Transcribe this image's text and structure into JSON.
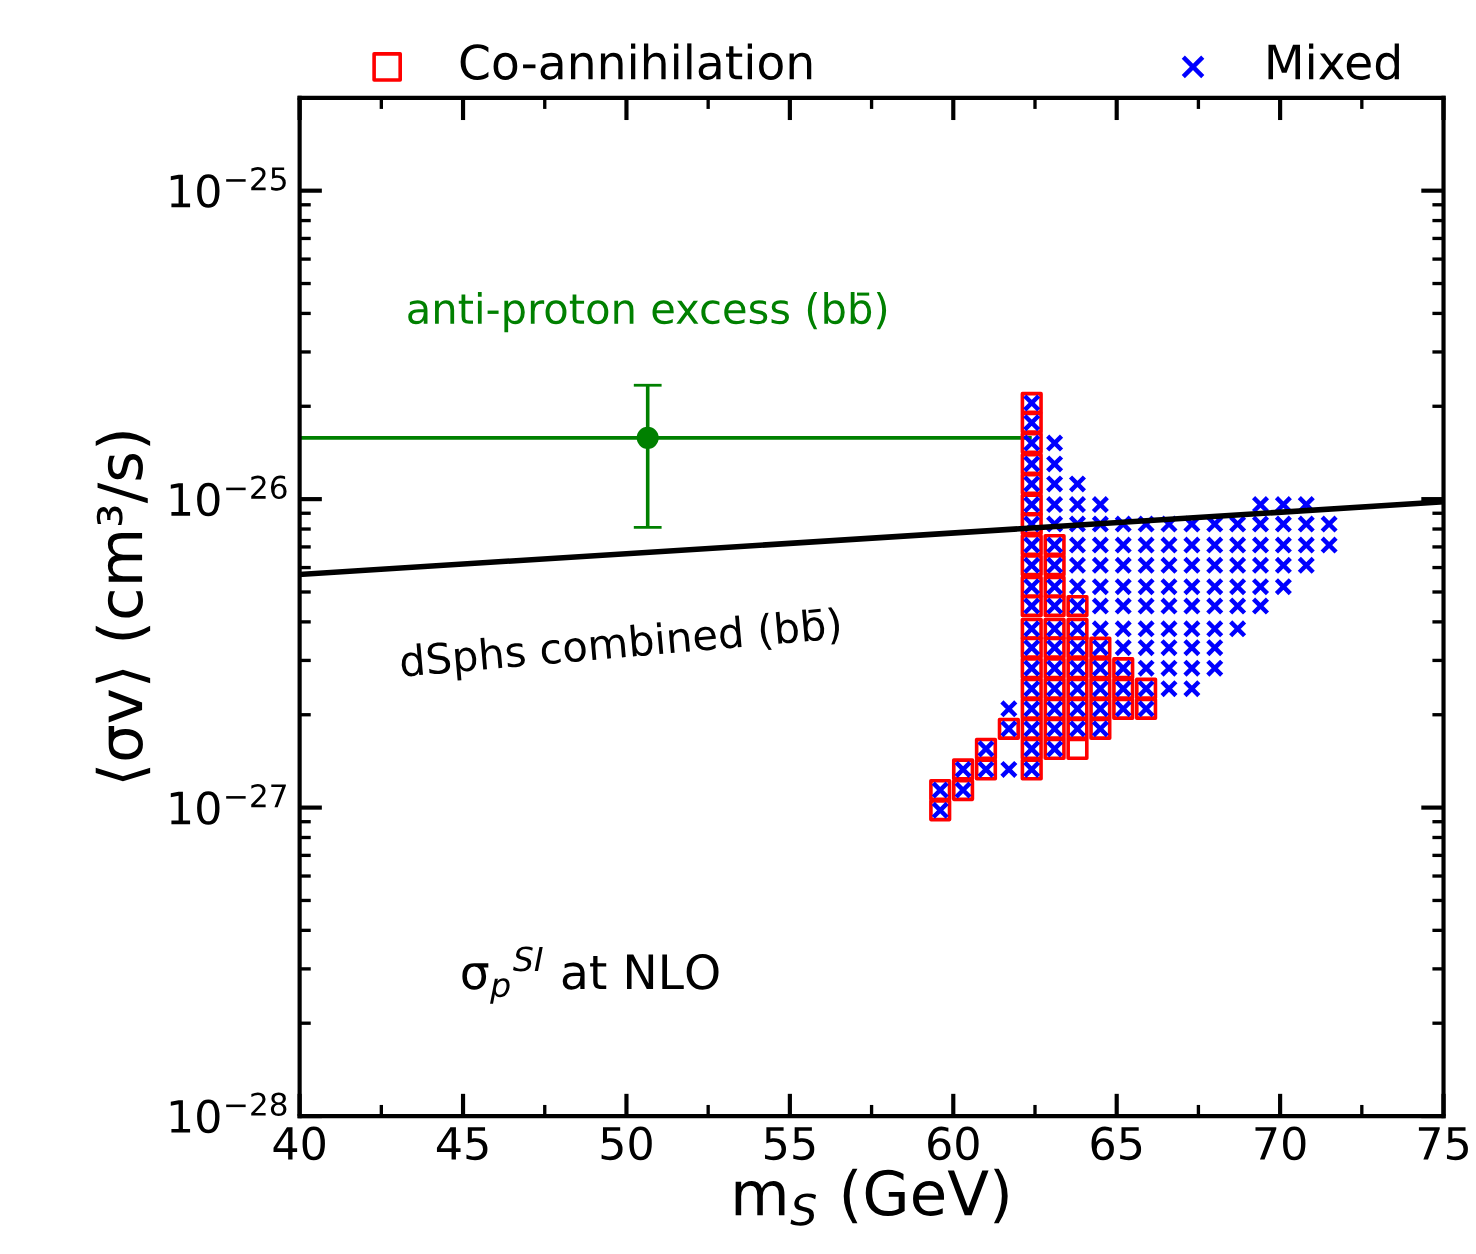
{
  "chart_data": {
    "type": "scatter",
    "xlabel": "m$_{S}$ (GeV)",
    "ylabel": "⟨σv⟩ (cm³/s)",
    "log": "y",
    "xlim": [
      40,
      75
    ],
    "ylim": [
      1e-28,
      2e-25
    ],
    "xticks": [
      40,
      45,
      50,
      55,
      60,
      65,
      70,
      75
    ],
    "yticks": [
      {
        "value": 1e-28,
        "label": "10$^{−28}$"
      },
      {
        "value": 1e-27,
        "label": "10$^{−27}$"
      },
      {
        "value": 1e-26,
        "label": "10$^{−26}$"
      },
      {
        "value": 1e-25,
        "label": "10$^{−25}$"
      }
    ],
    "grid": false,
    "legend": "top",
    "series": [
      {
        "name": "Co-annihilation",
        "marker": "square",
        "color": "#ff0000",
        "x": [
          59.6,
          59.6,
          60.3,
          60.3,
          61.0,
          61.0,
          61.7,
          62.4,
          62.4,
          62.4,
          62.4,
          62.4,
          62.4,
          62.4,
          62.4,
          62.4,
          62.4,
          62.4,
          62.4,
          62.4,
          62.4,
          62.4,
          62.4,
          62.4,
          62.4,
          62.4,
          63.1,
          63.1,
          63.1,
          63.1,
          63.1,
          63.1,
          63.1,
          63.1,
          63.1,
          63.1,
          63.1,
          63.8,
          63.8,
          63.8,
          63.8,
          63.8,
          63.8,
          63.8,
          63.8,
          64.5,
          64.5,
          64.5,
          64.5,
          64.5,
          65.2,
          65.2,
          65.2,
          65.9,
          65.9
        ],
        "values": [
          1.14e-27,
          9.8e-28,
          1.33e-27,
          1.14e-27,
          1.55e-27,
          1.33e-27,
          1.8e-27,
          2.05e-26,
          1.77e-26,
          1.52e-26,
          1.3e-26,
          1.12e-26,
          9.6e-27,
          8.3e-27,
          7.1e-27,
          6.1e-27,
          5.2e-27,
          4.5e-27,
          3.8e-27,
          3.3e-27,
          2.83e-27,
          2.43e-27,
          2.09e-27,
          1.8e-27,
          1.55e-27,
          1.33e-27,
          7.1e-27,
          6.1e-27,
          5.2e-27,
          4.5e-27,
          3.8e-27,
          3.3e-27,
          2.83e-27,
          2.43e-27,
          2.09e-27,
          1.8e-27,
          1.55e-27,
          4.5e-27,
          3.8e-27,
          3.3e-27,
          2.83e-27,
          2.43e-27,
          2.09e-27,
          1.8e-27,
          1.55e-27,
          3.3e-27,
          2.83e-27,
          2.43e-27,
          2.09e-27,
          1.8e-27,
          2.83e-27,
          2.43e-27,
          2.09e-27,
          2.43e-27,
          2.09e-27
        ]
      },
      {
        "name": "Mixed",
        "marker": "cross",
        "color": "#0000ff",
        "x": [
          59.6,
          59.6,
          60.3,
          60.3,
          61.0,
          61.0,
          61.7,
          61.7,
          61.7,
          62.4,
          62.4,
          62.4,
          62.4,
          62.4,
          62.4,
          62.4,
          62.4,
          62.4,
          62.4,
          62.4,
          62.4,
          62.4,
          62.4,
          62.4,
          62.4,
          62.4,
          62.4,
          62.4,
          63.1,
          63.1,
          63.1,
          63.1,
          63.1,
          63.1,
          63.1,
          63.1,
          63.1,
          63.1,
          63.1,
          63.1,
          63.1,
          63.1,
          63.1,
          63.1,
          63.8,
          63.8,
          63.8,
          63.8,
          63.8,
          63.8,
          63.8,
          63.8,
          63.8,
          63.8,
          63.8,
          63.8,
          63.8,
          64.5,
          64.5,
          64.5,
          64.5,
          64.5,
          64.5,
          64.5,
          64.5,
          64.5,
          64.5,
          64.5,
          64.5,
          65.2,
          65.2,
          65.2,
          65.2,
          65.2,
          65.2,
          65.2,
          65.2,
          65.2,
          65.2,
          65.9,
          65.9,
          65.9,
          65.9,
          65.9,
          65.9,
          65.9,
          65.9,
          65.9,
          65.9,
          66.6,
          66.6,
          66.6,
          66.6,
          66.6,
          66.6,
          66.6,
          66.6,
          66.6,
          67.3,
          67.3,
          67.3,
          67.3,
          67.3,
          67.3,
          67.3,
          67.3,
          67.3,
          68.0,
          68.0,
          68.0,
          68.0,
          68.0,
          68.0,
          68.0,
          68.0,
          68.7,
          68.7,
          68.7,
          68.7,
          68.7,
          68.7,
          69.4,
          69.4,
          69.4,
          69.4,
          69.4,
          69.4,
          70.1,
          70.1,
          70.1,
          70.1,
          70.1,
          70.8,
          70.8,
          70.8,
          70.8,
          71.5,
          71.5
        ],
        "values": [
          1.14e-27,
          9.8e-28,
          1.33e-27,
          1.14e-27,
          1.55e-27,
          1.33e-27,
          2.09e-27,
          1.8e-27,
          1.33e-27,
          2.05e-26,
          1.77e-26,
          1.52e-26,
          1.3e-26,
          1.12e-26,
          9.6e-27,
          8.3e-27,
          7.1e-27,
          6.1e-27,
          5.2e-27,
          4.5e-27,
          3.8e-27,
          3.3e-27,
          2.83e-27,
          2.43e-27,
          2.09e-27,
          1.8e-27,
          1.55e-27,
          1.33e-27,
          1.52e-26,
          1.3e-26,
          1.12e-26,
          9.6e-27,
          8.3e-27,
          7.1e-27,
          6.1e-27,
          5.2e-27,
          4.5e-27,
          3.8e-27,
          3.3e-27,
          2.83e-27,
          2.43e-27,
          2.09e-27,
          1.8e-27,
          1.55e-27,
          1.12e-26,
          9.6e-27,
          8.3e-27,
          7.1e-27,
          6.1e-27,
          5.2e-27,
          4.5e-27,
          3.8e-27,
          3.3e-27,
          2.83e-27,
          2.43e-27,
          2.09e-27,
          1.8e-27,
          9.6e-27,
          8.3e-27,
          7.1e-27,
          6.1e-27,
          5.2e-27,
          4.5e-27,
          3.8e-27,
          3.3e-27,
          2.83e-27,
          2.43e-27,
          2.09e-27,
          1.8e-27,
          8.3e-27,
          7.1e-27,
          6.1e-27,
          5.2e-27,
          4.5e-27,
          3.8e-27,
          3.3e-27,
          2.83e-27,
          2.43e-27,
          2.09e-27,
          8.3e-27,
          7.1e-27,
          6.1e-27,
          5.2e-27,
          4.5e-27,
          3.8e-27,
          3.3e-27,
          2.83e-27,
          2.43e-27,
          2.09e-27,
          8.3e-27,
          7.1e-27,
          6.1e-27,
          5.2e-27,
          4.5e-27,
          3.8e-27,
          3.3e-27,
          2.83e-27,
          2.43e-27,
          8.3e-27,
          7.1e-27,
          6.1e-27,
          5.2e-27,
          4.5e-27,
          3.8e-27,
          3.3e-27,
          2.83e-27,
          2.43e-27,
          8.3e-27,
          7.1e-27,
          6.1e-27,
          5.2e-27,
          4.5e-27,
          3.8e-27,
          3.3e-27,
          2.83e-27,
          8.3e-27,
          7.1e-27,
          6.1e-27,
          5.2e-27,
          4.5e-27,
          3.8e-27,
          9.6e-27,
          8.3e-27,
          7.1e-27,
          6.1e-27,
          5.2e-27,
          4.5e-27,
          9.6e-27,
          8.3e-27,
          7.1e-27,
          6.1e-27,
          5.2e-27,
          9.6e-27,
          8.3e-27,
          7.1e-27,
          6.1e-27,
          8.3e-27,
          7.1e-27
        ]
      },
      {
        "type": "line",
        "color": "#000000",
        "x": [
          40,
          75
        ],
        "values": [
          5.7e-27,
          9.8e-27
        ]
      },
      {
        "marker": "circle",
        "color": "#008000",
        "x": [
          50.65
        ],
        "values": [
          1.58e-26
        ],
        "errors": [
          [
            8.1e-27,
            2.34e-26
          ]
        ],
        "xerrors": [
          [
            40,
            62.4
          ]
        ]
      }
    ],
    "annotations": [
      {
        "text": "anti-proton excess (bb̄)",
        "x": 50.65,
        "y": 1.58e-26
      },
      {
        "text": "dSphs combined (bb̄)",
        "x": 43,
        "y": 6e-27
      },
      "σ$_{p}$$^{SI}$ at NLO"
    ]
  }
}
